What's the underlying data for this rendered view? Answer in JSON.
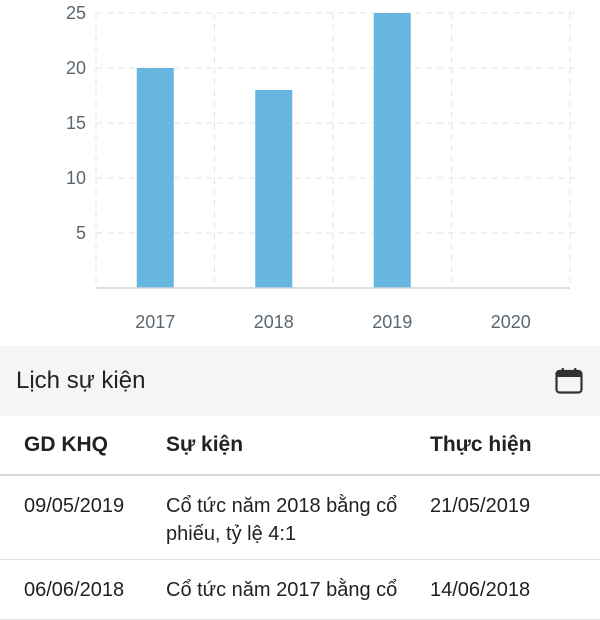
{
  "chart_data": {
    "type": "bar",
    "categories": [
      "2017",
      "2018",
      "2019",
      "2020"
    ],
    "values": [
      20,
      18,
      25,
      0
    ],
    "yticks": [
      5,
      10,
      15,
      20,
      25
    ],
    "ylim": [
      0,
      25
    ],
    "grid": true,
    "bar_color": "#66b6df",
    "title": "",
    "xlabel": "",
    "ylabel": ""
  },
  "events": {
    "title": "Lịch sự kiện",
    "calendar_icon": "calendar-icon",
    "columns": [
      "GD KHQ",
      "Sự kiện",
      "Thực hiện"
    ],
    "rows": [
      {
        "ex_date": "09/05/2019",
        "event": "Cổ tức năm 2018 bằng cổ phiếu, tỷ lệ 4:1",
        "exec_date": "21/05/2019"
      },
      {
        "ex_date": "06/06/2018",
        "event": "Cổ tức năm 2017 bằng cổ",
        "exec_date": "14/06/2018"
      }
    ]
  }
}
